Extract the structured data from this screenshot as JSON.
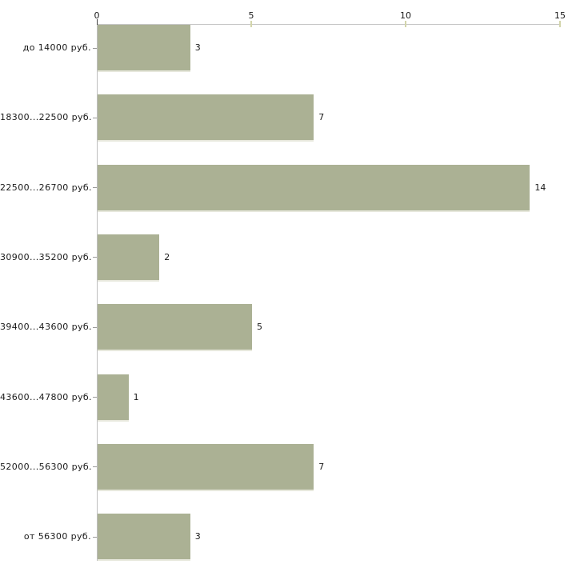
{
  "chart_data": {
    "type": "bar",
    "orientation": "horizontal",
    "title": "",
    "xlabel": "",
    "ylabel": "",
    "categories": [
      "до 14000 руб.",
      "18300...22500 руб.",
      "22500...26700 руб.",
      "30900...35200 руб.",
      "39400...43600 руб.",
      "43600...47800 руб.",
      "52000...56300 руб.",
      "от 56300 руб."
    ],
    "values": [
      3,
      7,
      14,
      2,
      5,
      1,
      7,
      3
    ],
    "value_labels": [
      "3",
      "7",
      "14",
      "2",
      "5",
      "1",
      "7",
      "3"
    ],
    "xlim": [
      0,
      15
    ],
    "xticks": [
      0,
      5,
      10,
      15
    ],
    "xtick_labels": [
      "0",
      "5",
      "10",
      "15"
    ],
    "tick_position": "top",
    "grid": false,
    "legend": false,
    "colors": {
      "background": "#ffffff",
      "bar_fill": "#abb194",
      "bar_edge_bottom": "#e7e8dc",
      "axis_line": "#c6c6c6",
      "y_axis_line": "#bfbfbf",
      "tick_mark": "#d3d5ab",
      "zero_tick_mark": "#444444",
      "category_dash": "#999999",
      "text": "#1a1a1a"
    }
  }
}
